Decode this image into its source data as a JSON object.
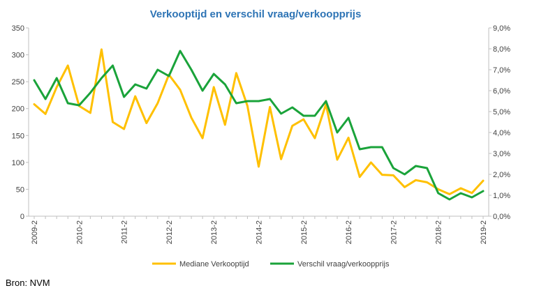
{
  "source_label": "Bron: NVM",
  "chart_data": {
    "type": "line",
    "title": "Verkooptijd en verschil vraag/verkoopprijs",
    "xlabel": "",
    "ylabel": "",
    "y_left_lim": [
      0,
      350
    ],
    "y_left_ticks": [
      "0",
      "50",
      "100",
      "150",
      "200",
      "250",
      "300",
      "350"
    ],
    "y_right_lim": [
      0,
      9
    ],
    "y_right_ticks": [
      "0,0%",
      "1,0%",
      "2,0%",
      "3,0%",
      "4,0%",
      "5,0%",
      "6,0%",
      "7,0%",
      "8,0%",
      "9,0%"
    ],
    "x_tick_labels": [
      "2009-2",
      "2010-2",
      "2011-2",
      "2012-2",
      "2013-2",
      "2014-2",
      "2015-2",
      "2016-2",
      "2017-2",
      "2018-2",
      "2019-2"
    ],
    "x_tick_every": 4,
    "grid": false,
    "legend_position": "bottom",
    "series": [
      {
        "name": "Mediane Verkooptijd",
        "axis": "left",
        "color": "#ffc000",
        "values": [
          208,
          190,
          240,
          280,
          205,
          192,
          310,
          175,
          162,
          223,
          173,
          210,
          263,
          235,
          183,
          145,
          240,
          170,
          266,
          205,
          92,
          203,
          106,
          168,
          180,
          145,
          208,
          105,
          146,
          73,
          100,
          77,
          76,
          54,
          67,
          63,
          50,
          41,
          52,
          43,
          66
        ]
      },
      {
        "name": "Verschil vraag/verkoopprijs",
        "axis": "right",
        "color": "#1aa33a",
        "values": [
          6.5,
          5.6,
          6.6,
          5.4,
          5.3,
          5.9,
          6.6,
          7.2,
          5.7,
          6.3,
          6.1,
          7.0,
          6.7,
          7.9,
          7.0,
          6.0,
          6.8,
          6.3,
          5.4,
          5.5,
          5.5,
          5.6,
          4.9,
          5.2,
          4.8,
          4.8,
          5.5,
          4.0,
          4.7,
          3.2,
          3.3,
          3.3,
          2.3,
          2.0,
          2.4,
          2.3,
          1.1,
          0.8,
          1.1,
          0.9,
          1.2
        ]
      }
    ]
  }
}
